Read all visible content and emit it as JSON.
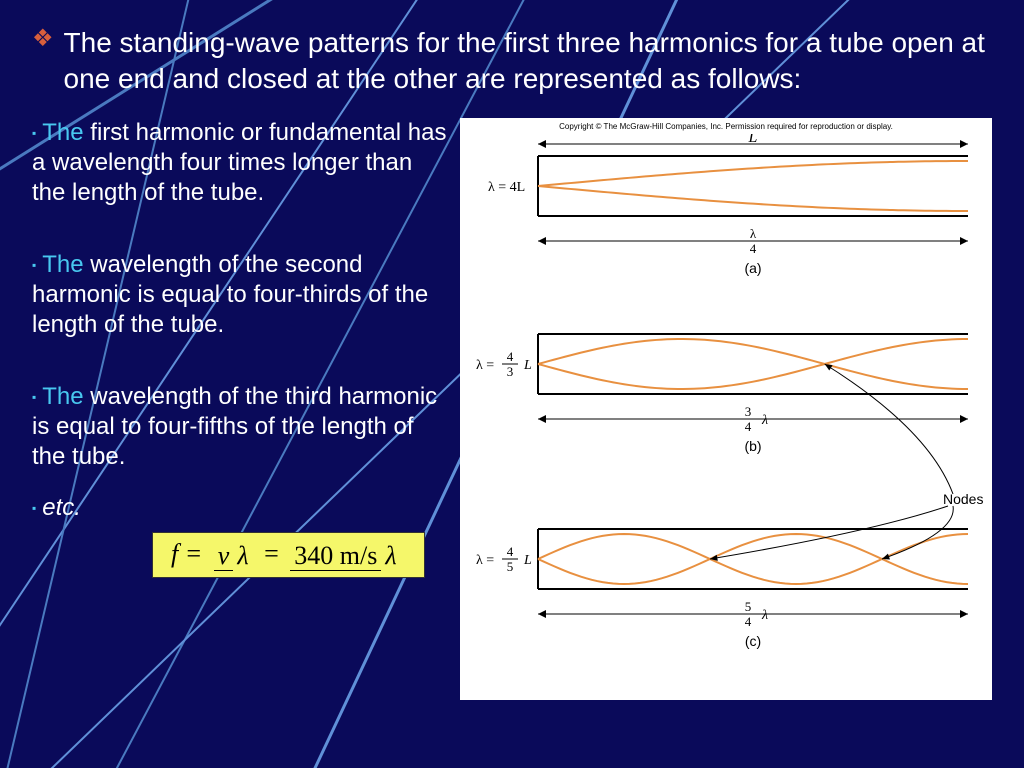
{
  "background": {
    "color": "#0a0a5a",
    "line_color": "#4a7ac0",
    "line_color_light": "#6090d8",
    "lines": [
      [
        -50,
        200,
        350,
        -50
      ],
      [
        -50,
        700,
        450,
        -50
      ],
      [
        100,
        800,
        550,
        -50
      ],
      [
        300,
        800,
        700,
        -50
      ],
      [
        0,
        800,
        200,
        -50
      ],
      [
        50,
        770,
        900,
        -50
      ]
    ]
  },
  "title": {
    "bullet_color": "#d95f3c",
    "text": "The standing-wave patterns for the first three harmonics for a tube open at one end and closed at the other are represented as follows:",
    "text_color": "#ffffff",
    "fontsize": 28
  },
  "paragraphs": [
    {
      "first": "The",
      "rest": " first harmonic or fundamental has a wavelength four times longer than the length of the tube."
    },
    {
      "first": "The",
      "rest": " wavelength of the second harmonic is equal to four-thirds of the length of the tube."
    },
    {
      "first": "The",
      "rest": " wavelength of the third harmonic is equal to four-fifths of the length of the tube."
    }
  ],
  "etc": "etc.",
  "bullet_color": "#48c8f0",
  "formula": {
    "background": "#f5f76a",
    "lhs": "f =",
    "frac1_num": "v",
    "frac1_den": "λ",
    "eq": "=",
    "frac2_num": "340  m/s",
    "frac2_den": "λ"
  },
  "diagram": {
    "copyright": "Copyright © The McGraw-Hill Companies, Inc. Permission required for reproduction or display.",
    "wave_color": "#e89040",
    "tube_color": "#000000",
    "arrow_color": "#000000",
    "L_label": "L",
    "nodes_label": "Nodes",
    "panels": [
      {
        "lambda_tex": "λ = 4L",
        "bottom_frac_num": "λ",
        "bottom_frac_den": "4",
        "label": "(a)"
      },
      {
        "lambda_tex_frac_num": "4",
        "lambda_tex_frac_den": "3",
        "lambda_tex_suffix": "L",
        "bottom_frac_num": "3",
        "bottom_frac_den": "4",
        "bottom_suffix": "λ",
        "label": "(b)"
      },
      {
        "lambda_tex_frac_num": "4",
        "lambda_tex_frac_den": "5",
        "lambda_tex_suffix": "L",
        "bottom_frac_num": "5",
        "bottom_frac_den": "4",
        "bottom_suffix": "λ",
        "label": "(c)"
      }
    ]
  }
}
